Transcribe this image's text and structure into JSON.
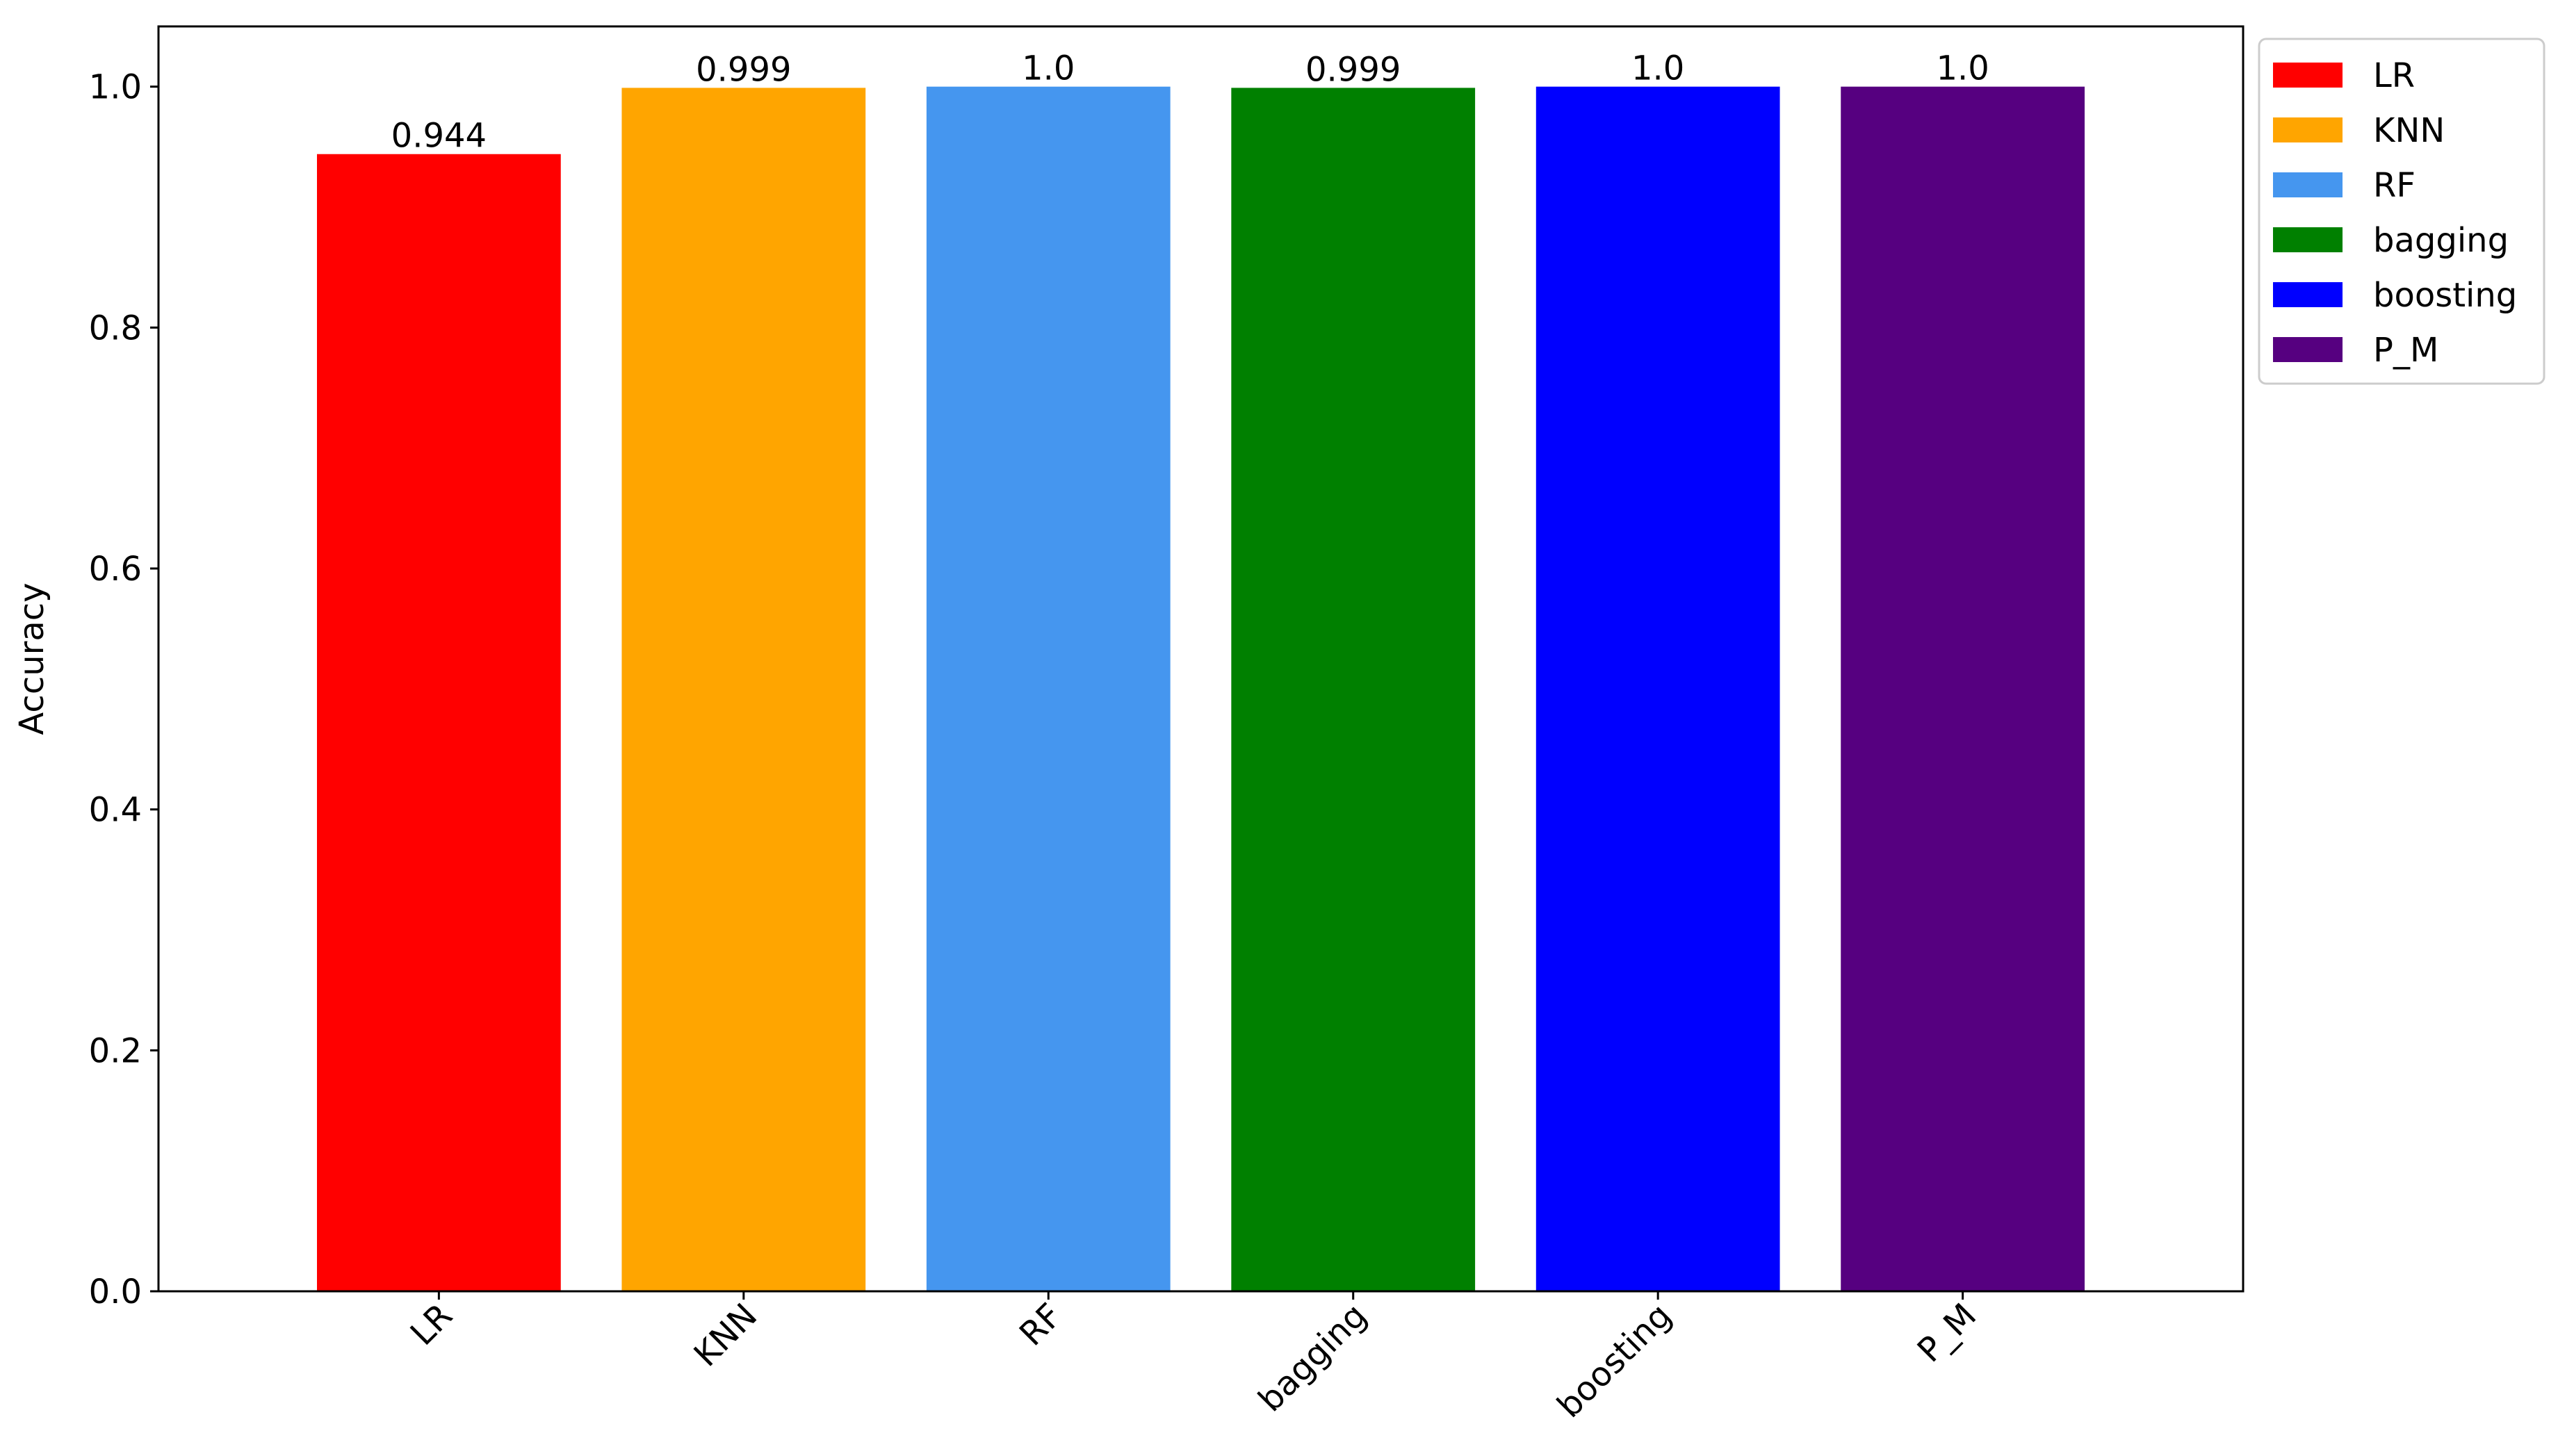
{
  "chart_data": {
    "type": "bar",
    "title": "",
    "xlabel": "",
    "ylabel": "Accuracy",
    "ylim": [
      0,
      1.05
    ],
    "y_ticks": [
      "0.0",
      "0.2",
      "0.4",
      "0.6",
      "0.8",
      "1.0"
    ],
    "grid": false,
    "legend_position": "outside top-right",
    "categories": [
      "LR",
      "KNN",
      "RF",
      "bagging",
      "boosting",
      "P_M"
    ],
    "values": [
      0.944,
      0.999,
      1.0,
      0.999,
      1.0,
      1.0
    ],
    "data_labels": [
      "0.944",
      "0.999",
      "1.0",
      "0.999",
      "1.0",
      "1.0"
    ],
    "colors": [
      "#ff0000",
      "#ffa500",
      "#4596ef",
      "#008000",
      "#0000ff",
      "#560080"
    ],
    "legend": [
      "LR",
      "KNN",
      "RF",
      "bagging",
      "boosting",
      "P_M"
    ]
  }
}
